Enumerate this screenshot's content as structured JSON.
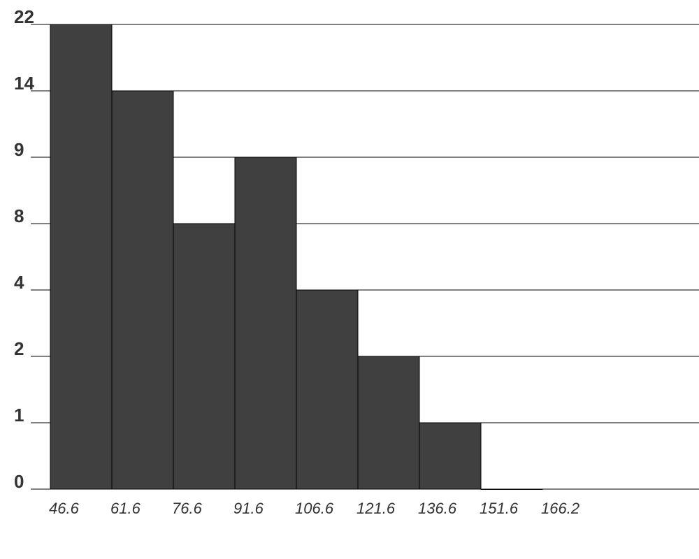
{
  "chart_data": {
    "type": "bar",
    "y_scale": "categorical-gridlines",
    "y_ticks": [
      0,
      1,
      2,
      4,
      8,
      9,
      14,
      22
    ],
    "x_ticks": [
      "46.6",
      "61.6",
      "76.6",
      "91.6",
      "106.6",
      "121.6",
      "136.6",
      "151.6",
      "166.2"
    ],
    "bins": [
      "46.6",
      "61.6",
      "76.6",
      "91.6",
      "106.6",
      "121.6",
      "136.6",
      "151.6"
    ],
    "values": [
      22,
      14,
      8,
      9,
      4,
      2,
      1,
      0
    ],
    "grid": true,
    "bar_color": "#404040",
    "title": "",
    "xlabel": "",
    "ylabel": ""
  }
}
